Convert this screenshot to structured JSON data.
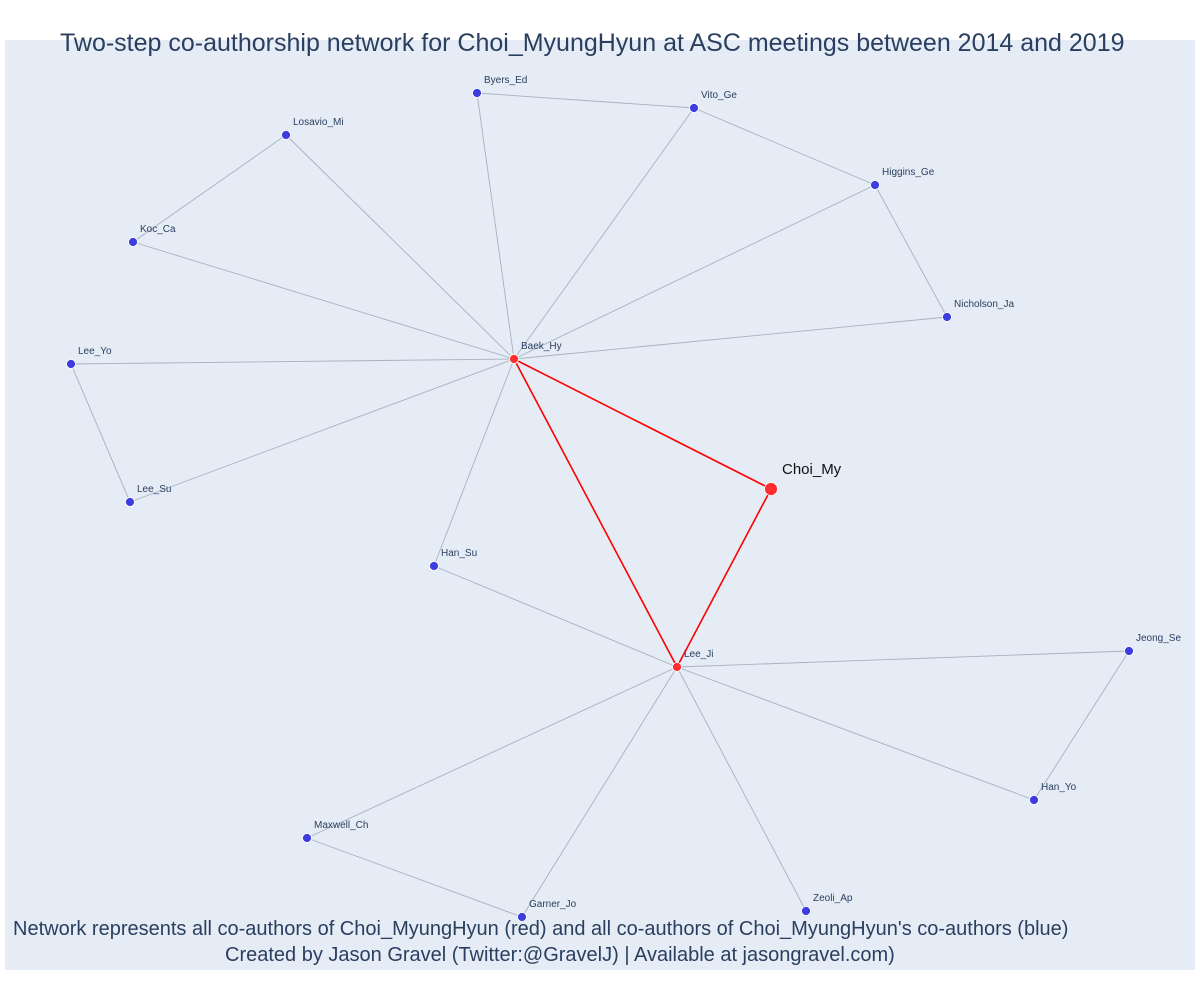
{
  "title": "Two-step co-authorship network for Choi_MyungHyun at ASC meetings between 2014 and 2019",
  "captions": {
    "line1": "Network represents all co-authors of Choi_MyungHyun (red) and all co-authors of Choi_MyungHyun's co-authors (blue)",
    "line2": "Created by Jason Gravel (Twitter:@GravelJ) | Available at jasongravel.com)"
  },
  "colors": {
    "plot_background": "#e5ecf6",
    "first_degree_node": "#ff2d2d",
    "second_degree_node": "#3d3ddf",
    "highlight_edge": "#ff0000",
    "regular_edge": "#a9b0c0",
    "title_text": "#2a3f5f"
  },
  "nodes": [
    {
      "id": "Choi_My",
      "label": "Choi_My",
      "group": "focal"
    },
    {
      "id": "Baek_Hy",
      "label": "Baek_Hy",
      "group": "first-degree"
    },
    {
      "id": "Lee_Ji",
      "label": "Lee_Ji",
      "group": "first-degree"
    },
    {
      "id": "Byers_Ed",
      "label": "Byers_Ed",
      "group": "second-degree"
    },
    {
      "id": "Vito_Ge",
      "label": "Vito_Ge",
      "group": "second-degree"
    },
    {
      "id": "Higgins_Ge",
      "label": "Higgins_Ge",
      "group": "second-degree"
    },
    {
      "id": "Nicholson_Ja",
      "label": "Nicholson_Ja",
      "group": "second-degree"
    },
    {
      "id": "Losavio_Mi",
      "label": "Losavio_Mi",
      "group": "second-degree"
    },
    {
      "id": "Koc_Ca",
      "label": "Koc_Ca",
      "group": "second-degree"
    },
    {
      "id": "Lee_Yo",
      "label": "Lee_Yo",
      "group": "second-degree"
    },
    {
      "id": "Lee_Su",
      "label": "Lee_Su",
      "group": "second-degree"
    },
    {
      "id": "Han_Su",
      "label": "Han_Su",
      "group": "second-degree"
    },
    {
      "id": "Jeong_Se",
      "label": "Jeong_Se",
      "group": "second-degree"
    },
    {
      "id": "Han_Yo",
      "label": "Han_Yo",
      "group": "second-degree"
    },
    {
      "id": "Maxwell_Ch",
      "label": "Maxwell_Ch",
      "group": "second-degree"
    },
    {
      "id": "Garner_Jo",
      "label": "Garner_Jo",
      "group": "second-degree"
    },
    {
      "id": "Zeoli_Ap",
      "label": "Zeoli_Ap",
      "group": "second-degree"
    }
  ],
  "edges": [
    {
      "source": "Choi_My",
      "target": "Baek_Hy",
      "highlight": true
    },
    {
      "source": "Choi_My",
      "target": "Lee_Ji",
      "highlight": true
    },
    {
      "source": "Baek_Hy",
      "target": "Lee_Ji",
      "highlight": true
    },
    {
      "source": "Baek_Hy",
      "target": "Byers_Ed",
      "highlight": false
    },
    {
      "source": "Baek_Hy",
      "target": "Vito_Ge",
      "highlight": false
    },
    {
      "source": "Baek_Hy",
      "target": "Higgins_Ge",
      "highlight": false
    },
    {
      "source": "Baek_Hy",
      "target": "Nicholson_Ja",
      "highlight": false
    },
    {
      "source": "Baek_Hy",
      "target": "Losavio_Mi",
      "highlight": false
    },
    {
      "source": "Baek_Hy",
      "target": "Koc_Ca",
      "highlight": false
    },
    {
      "source": "Baek_Hy",
      "target": "Lee_Yo",
      "highlight": false
    },
    {
      "source": "Baek_Hy",
      "target": "Lee_Su",
      "highlight": false
    },
    {
      "source": "Baek_Hy",
      "target": "Han_Su",
      "highlight": false
    },
    {
      "source": "Byers_Ed",
      "target": "Vito_Ge",
      "highlight": false
    },
    {
      "source": "Vito_Ge",
      "target": "Higgins_Ge",
      "highlight": false
    },
    {
      "source": "Higgins_Ge",
      "target": "Nicholson_Ja",
      "highlight": false
    },
    {
      "source": "Losavio_Mi",
      "target": "Koc_Ca",
      "highlight": false
    },
    {
      "source": "Lee_Yo",
      "target": "Lee_Su",
      "highlight": false
    },
    {
      "source": "Lee_Ji",
      "target": "Han_Su",
      "highlight": false
    },
    {
      "source": "Lee_Ji",
      "target": "Jeong_Se",
      "highlight": false
    },
    {
      "source": "Lee_Ji",
      "target": "Han_Yo",
      "highlight": false
    },
    {
      "source": "Lee_Ji",
      "target": "Maxwell_Ch",
      "highlight": false
    },
    {
      "source": "Lee_Ji",
      "target": "Garner_Jo",
      "highlight": false
    },
    {
      "source": "Lee_Ji",
      "target": "Zeoli_Ap",
      "highlight": false
    },
    {
      "source": "Jeong_Se",
      "target": "Han_Yo",
      "highlight": false
    },
    {
      "source": "Maxwell_Ch",
      "target": "Garner_Jo",
      "highlight": false
    }
  ]
}
